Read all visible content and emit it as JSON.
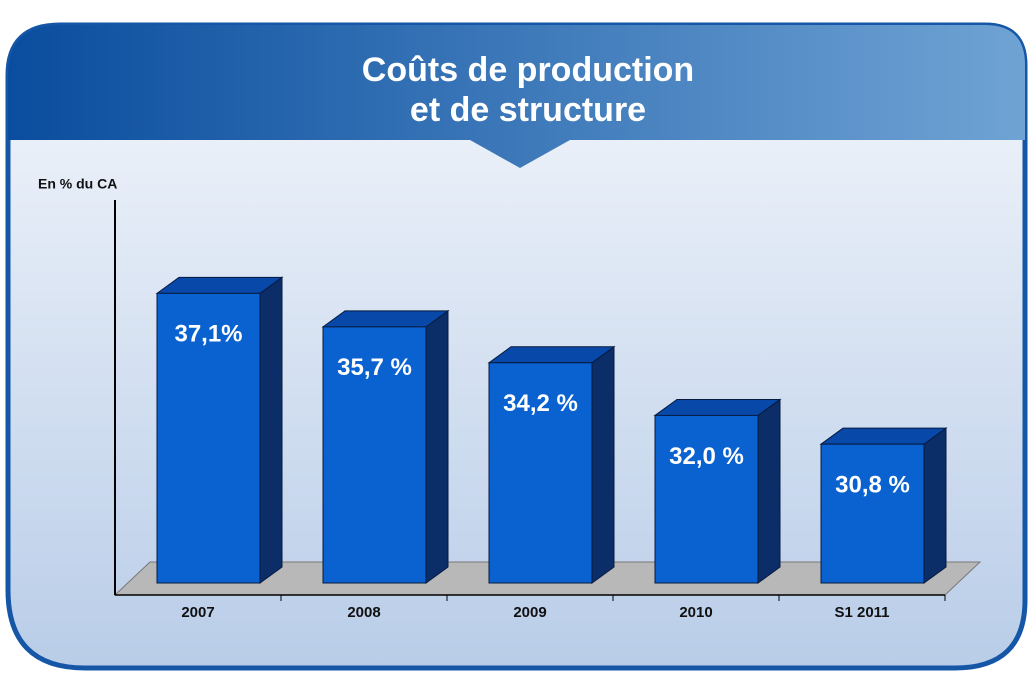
{
  "chart_data": {
    "type": "bar3d",
    "title": [
      "Coûts de production",
      "et de structure"
    ],
    "y_label": "En % du CA",
    "categories": [
      "2007",
      "2008",
      "2009",
      "2010",
      "S1 2011"
    ],
    "values": [
      37.1,
      35.7,
      34.2,
      32.0,
      30.8
    ],
    "value_labels": [
      "37,1%",
      "35,7 %",
      "34,2 %",
      "32,0 %",
      "30,8 %"
    ],
    "color": "#0a62d0",
    "ylim": [
      25,
      41
    ]
  }
}
